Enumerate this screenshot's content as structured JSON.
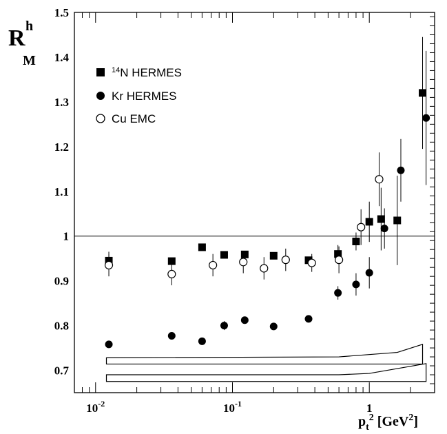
{
  "chart_data": {
    "type": "scatter",
    "title": "",
    "ylabel": {
      "main": "R",
      "sup": "h",
      "sub": "M"
    },
    "xlabel": {
      "base": "p",
      "sub": "t",
      "sup": "2",
      "unit": "[GeV",
      "unit_sup": "2",
      "unit_close": "]"
    },
    "xscale": "log",
    "xlim": [
      0.007,
      3.0
    ],
    "ylim": [
      0.65,
      1.5
    ],
    "x_ticks": [
      {
        "value": 0.01,
        "base": "10",
        "exp": "-2"
      },
      {
        "value": 0.1,
        "base": "10",
        "exp": "-1"
      },
      {
        "value": 1,
        "base": "1",
        "exp": ""
      }
    ],
    "y_ticks": [
      {
        "value": 0.7,
        "label": "0.7"
      },
      {
        "value": 0.8,
        "label": "0.8"
      },
      {
        "value": 0.9,
        "label": "0.9"
      },
      {
        "value": 1.0,
        "label": "1"
      },
      {
        "value": 1.1,
        "label": "1.1"
      },
      {
        "value": 1.2,
        "label": "1.2"
      },
      {
        "value": 1.3,
        "label": "1.3"
      },
      {
        "value": 1.4,
        "label": "1.4"
      },
      {
        "value": 1.5,
        "label": "1.5"
      }
    ],
    "reference_line": 1.0,
    "legend_position": "top-left",
    "series": [
      {
        "name": "HERMES",
        "legend_sup": "14",
        "legend_prefix": "N",
        "marker": "filled-square",
        "points": [
          {
            "x": 0.0125,
            "y": 0.945,
            "err": 0.02
          },
          {
            "x": 0.036,
            "y": 0.944,
            "err": 0.0
          },
          {
            "x": 0.06,
            "y": 0.975,
            "err": 0.0
          },
          {
            "x": 0.087,
            "y": 0.958,
            "err": 0.0
          },
          {
            "x": 0.123,
            "y": 0.959,
            "err": 0.0
          },
          {
            "x": 0.2,
            "y": 0.956,
            "err": 0.0
          },
          {
            "x": 0.36,
            "y": 0.946,
            "err": 0.0
          },
          {
            "x": 0.59,
            "y": 0.96,
            "err": 0.02
          },
          {
            "x": 0.8,
            "y": 0.988,
            "err": 0.02
          },
          {
            "x": 1.0,
            "y": 1.032,
            "err": 0.045
          },
          {
            "x": 1.22,
            "y": 1.038,
            "err": 0.07
          },
          {
            "x": 1.6,
            "y": 1.035,
            "err": 0.1
          },
          {
            "x": 2.45,
            "y": 1.32,
            "err": 0.125
          }
        ]
      },
      {
        "name": "HERMES",
        "legend_prefix": "Kr",
        "marker": "filled-circle",
        "points": [
          {
            "x": 0.0125,
            "y": 0.758,
            "err": 0.0
          },
          {
            "x": 0.036,
            "y": 0.777,
            "err": 0.0
          },
          {
            "x": 0.06,
            "y": 0.765,
            "err": 0.0
          },
          {
            "x": 0.087,
            "y": 0.8,
            "err": 0.01
          },
          {
            "x": 0.123,
            "y": 0.812,
            "err": 0.0
          },
          {
            "x": 0.2,
            "y": 0.798,
            "err": 0.0
          },
          {
            "x": 0.36,
            "y": 0.815,
            "err": 0.0
          },
          {
            "x": 0.59,
            "y": 0.873,
            "err": 0.015
          },
          {
            "x": 0.8,
            "y": 0.892,
            "err": 0.025
          },
          {
            "x": 1.0,
            "y": 0.918,
            "err": 0.035
          },
          {
            "x": 1.29,
            "y": 1.017,
            "err": 0.045
          },
          {
            "x": 1.7,
            "y": 1.147,
            "err": 0.07
          },
          {
            "x": 2.6,
            "y": 1.264,
            "err": 0.15
          }
        ]
      },
      {
        "name": "EMC",
        "legend_prefix": "Cu",
        "marker": "open-circle",
        "points": [
          {
            "x": 0.0125,
            "y": 0.935,
            "err": 0.025
          },
          {
            "x": 0.036,
            "y": 0.915,
            "err": 0.025
          },
          {
            "x": 0.072,
            "y": 0.935,
            "err": 0.025
          },
          {
            "x": 0.12,
            "y": 0.942,
            "err": 0.025
          },
          {
            "x": 0.17,
            "y": 0.928,
            "err": 0.025
          },
          {
            "x": 0.245,
            "y": 0.947,
            "err": 0.025
          },
          {
            "x": 0.38,
            "y": 0.94,
            "err": 0.02
          },
          {
            "x": 0.6,
            "y": 0.947,
            "err": 0.03
          },
          {
            "x": 0.87,
            "y": 1.02,
            "err": 0.04
          },
          {
            "x": 1.18,
            "y": 1.127,
            "err": 0.06
          }
        ]
      }
    ],
    "systematic_bands": [
      {
        "upper": [
          [
            0.012,
            0.728
          ],
          [
            0.6,
            0.73
          ],
          [
            1.6,
            0.74
          ],
          [
            2.45,
            0.758
          ]
        ],
        "lower": [
          [
            0.012,
            0.714
          ],
          [
            0.6,
            0.714
          ],
          [
            1.6,
            0.714
          ],
          [
            2.45,
            0.714
          ]
        ]
      },
      {
        "upper": [
          [
            0.012,
            0.69
          ],
          [
            0.6,
            0.69
          ],
          [
            1.0,
            0.693
          ],
          [
            2.6,
            0.715
          ]
        ],
        "lower": [
          [
            0.012,
            0.675
          ],
          [
            0.6,
            0.675
          ],
          [
            1.0,
            0.675
          ],
          [
            2.6,
            0.675
          ]
        ]
      }
    ]
  }
}
